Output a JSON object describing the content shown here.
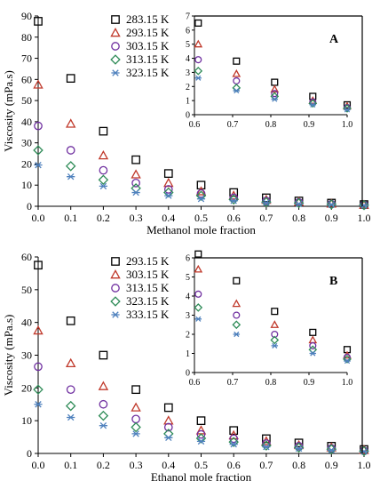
{
  "chart_data": [
    {
      "type": "scatter",
      "panel_label": "",
      "xlabel": "Methanol mole fraction",
      "ylabel": "Viscosity (mPa.s)",
      "xlim": [
        0,
        1
      ],
      "ylim": [
        0,
        90
      ],
      "x_ticks": [
        "0.0",
        "0.1",
        "0.2",
        "0.3",
        "0.4",
        "0.5",
        "0.6",
        "0.7",
        "0.8",
        "0.9",
        "1.0"
      ],
      "y_ticks": [
        "0",
        "10",
        "20",
        "30",
        "40",
        "50",
        "60",
        "70",
        "80",
        "90"
      ],
      "legend_position": "top-center",
      "x": [
        0,
        0.1,
        0.2,
        0.3,
        0.4,
        0.5,
        0.6,
        0.7,
        0.8,
        0.9,
        1.0
      ],
      "series": [
        {
          "name": "283.15 K",
          "marker": "square",
          "color": "#000000",
          "values": [
            87.5,
            60.5,
            35.5,
            22,
            15.5,
            10,
            6.5,
            4,
            2.5,
            1.5,
            0.8
          ]
        },
        {
          "name": "293.15 K",
          "marker": "triangle",
          "color": "#c0392b",
          "values": [
            57.5,
            39,
            24,
            15,
            11,
            7,
            5,
            3,
            2,
            1.2,
            0.6
          ]
        },
        {
          "name": "303.15 K",
          "marker": "circle",
          "color": "#7030a0",
          "values": [
            38,
            26.5,
            17,
            11,
            8,
            6,
            4,
            2.5,
            1.8,
            1,
            0.6
          ]
        },
        {
          "name": "313.15 K",
          "marker": "diamond",
          "color": "#2e8b57",
          "values": [
            26.5,
            19,
            12.5,
            8.5,
            6.5,
            5,
            3.2,
            2,
            1.5,
            0.9,
            0.5
          ]
        },
        {
          "name": "323.15 K",
          "marker": "asterisk",
          "color": "#4f81bd",
          "values": [
            19.5,
            14,
            9.5,
            6.5,
            5,
            3.5,
            2.6,
            1.7,
            1.1,
            0.8,
            0.4
          ]
        }
      ],
      "inset": {
        "panel_label": "A",
        "xlim": [
          0.6,
          1.0
        ],
        "ylim": [
          0,
          7
        ],
        "x_ticks": [
          "0.6",
          "0.7",
          "0.8",
          "0.9",
          "1.0"
        ],
        "y_ticks": [
          "0",
          "1",
          "2",
          "3",
          "4",
          "5",
          "6",
          "7"
        ],
        "x": [
          0.61,
          0.71,
          0.81,
          0.91,
          1.0
        ],
        "series": [
          {
            "name": "283.15 K",
            "values": [
              6.5,
              3.8,
              2.3,
              1.3,
              0.7
            ]
          },
          {
            "name": "293.15 K",
            "values": [
              5.0,
              2.9,
              1.8,
              1.0,
              0.6
            ]
          },
          {
            "name": "303.15 K",
            "values": [
              3.9,
              2.4,
              1.5,
              0.9,
              0.5
            ]
          },
          {
            "name": "313.15 K",
            "values": [
              3.1,
              1.9,
              1.3,
              0.8,
              0.45
            ]
          },
          {
            "name": "323.15 K",
            "values": [
              2.6,
              1.7,
              1.1,
              0.7,
              0.35
            ]
          }
        ]
      }
    },
    {
      "type": "scatter",
      "panel_label": "",
      "xlabel": "Ethanol mole fraction",
      "ylabel": "Viscosity (mPa.s)",
      "xlim": [
        0,
        1
      ],
      "ylim": [
        0,
        60
      ],
      "x_ticks": [
        "0.0",
        "0.1",
        "0.2",
        "0.3",
        "0.4",
        "0.5",
        "0.6",
        "0.7",
        "0.8",
        "0.9",
        "1.0"
      ],
      "y_ticks": [
        "0",
        "10",
        "20",
        "30",
        "40",
        "50",
        "60"
      ],
      "legend_position": "top-center",
      "x": [
        0,
        0.1,
        0.2,
        0.3,
        0.4,
        0.5,
        0.6,
        0.7,
        0.8,
        0.9,
        1.0
      ],
      "series": [
        {
          "name": "293.15 K",
          "marker": "square",
          "color": "#000000",
          "values": [
            57.5,
            40.5,
            30,
            19.5,
            14,
            10,
            7,
            4.5,
            3.2,
            2.2,
            1.2
          ]
        },
        {
          "name": "303.15 K",
          "marker": "triangle",
          "color": "#c0392b",
          "values": [
            37.5,
            27.5,
            20.5,
            14,
            10,
            7,
            5.5,
            3.7,
            2.5,
            1.8,
            1
          ]
        },
        {
          "name": "313.15 K",
          "marker": "circle",
          "color": "#7030a0",
          "values": [
            26.5,
            19.5,
            15,
            10.5,
            8,
            5.8,
            4.5,
            3,
            2.2,
            1.5,
            0.8
          ]
        },
        {
          "name": "323.15 K",
          "marker": "diamond",
          "color": "#2e8b57",
          "values": [
            19.5,
            14.5,
            11.5,
            8,
            6,
            4.6,
            3.5,
            2.4,
            1.8,
            1.3,
            0.7
          ]
        },
        {
          "name": "333.15 K",
          "marker": "asterisk",
          "color": "#4f81bd",
          "values": [
            15,
            11,
            8.5,
            6,
            4.8,
            3.7,
            2.8,
            2,
            1.5,
            1,
            0.6
          ]
        }
      ],
      "inset": {
        "panel_label": "B",
        "xlim": [
          0.6,
          1.0
        ],
        "ylim": [
          0,
          6
        ],
        "x_ticks": [
          "0.6",
          "0.7",
          "0.8",
          "0.9",
          "1.0"
        ],
        "y_ticks": [
          "0",
          "1",
          "2",
          "3",
          "4",
          "5",
          "6"
        ],
        "x": [
          0.61,
          0.71,
          0.81,
          0.91,
          1.0
        ],
        "series": [
          {
            "name": "293.15 K",
            "values": [
              6.2,
              4.8,
              3.2,
              2.1,
              1.2
            ]
          },
          {
            "name": "303.15 K",
            "values": [
              5.4,
              3.6,
              2.5,
              1.7,
              0.9
            ]
          },
          {
            "name": "313.15 K",
            "values": [
              4.1,
              3.0,
              2.0,
              1.4,
              0.8
            ]
          },
          {
            "name": "323.15 K",
            "values": [
              3.4,
              2.5,
              1.7,
              1.2,
              0.7
            ]
          },
          {
            "name": "333.15 K",
            "values": [
              2.8,
              2.0,
              1.4,
              1.0,
              0.6
            ]
          }
        ]
      }
    }
  ]
}
